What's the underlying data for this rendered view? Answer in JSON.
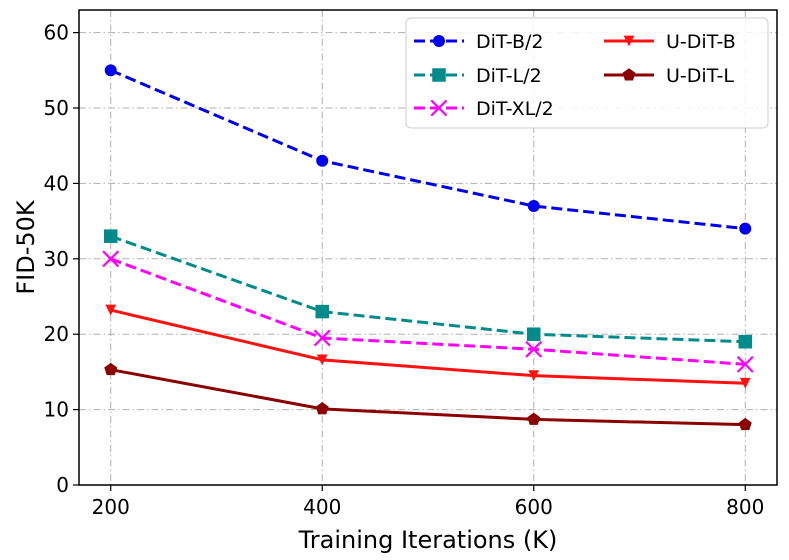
{
  "chart_data": {
    "type": "line",
    "title": "",
    "xlabel": "Training Iterations (K)",
    "ylabel": "FID-50K",
    "x": [
      200,
      400,
      600,
      800
    ],
    "xlim": [
      170,
      830
    ],
    "ylim": [
      0,
      63
    ],
    "xticks": [
      "200",
      "400",
      "600",
      "800"
    ],
    "yticks": [
      "0",
      "10",
      "20",
      "30",
      "40",
      "50",
      "60"
    ],
    "grid": true,
    "legend_position": "top-right",
    "series": [
      {
        "name": "DiT-B/2",
        "values": [
          55,
          43,
          37,
          34
        ],
        "color": "#0000ee",
        "dash": true,
        "marker": "circle"
      },
      {
        "name": "DiT-L/2",
        "values": [
          33,
          23,
          20,
          19
        ],
        "color": "#008b8b",
        "dash": true,
        "marker": "square"
      },
      {
        "name": "DiT-XL/2",
        "values": [
          30,
          19.5,
          18,
          16
        ],
        "color": "#ff00ff",
        "dash": true,
        "marker": "x"
      },
      {
        "name": "U-DiT-B",
        "values": [
          23.2,
          16.6,
          14.5,
          13.5
        ],
        "color": "#ff1111",
        "dash": false,
        "marker": "triangle-down"
      },
      {
        "name": "U-DiT-L",
        "values": [
          15.3,
          10.1,
          8.7,
          8.0
        ],
        "color": "#8b0000",
        "dash": false,
        "marker": "pentagon"
      }
    ]
  }
}
